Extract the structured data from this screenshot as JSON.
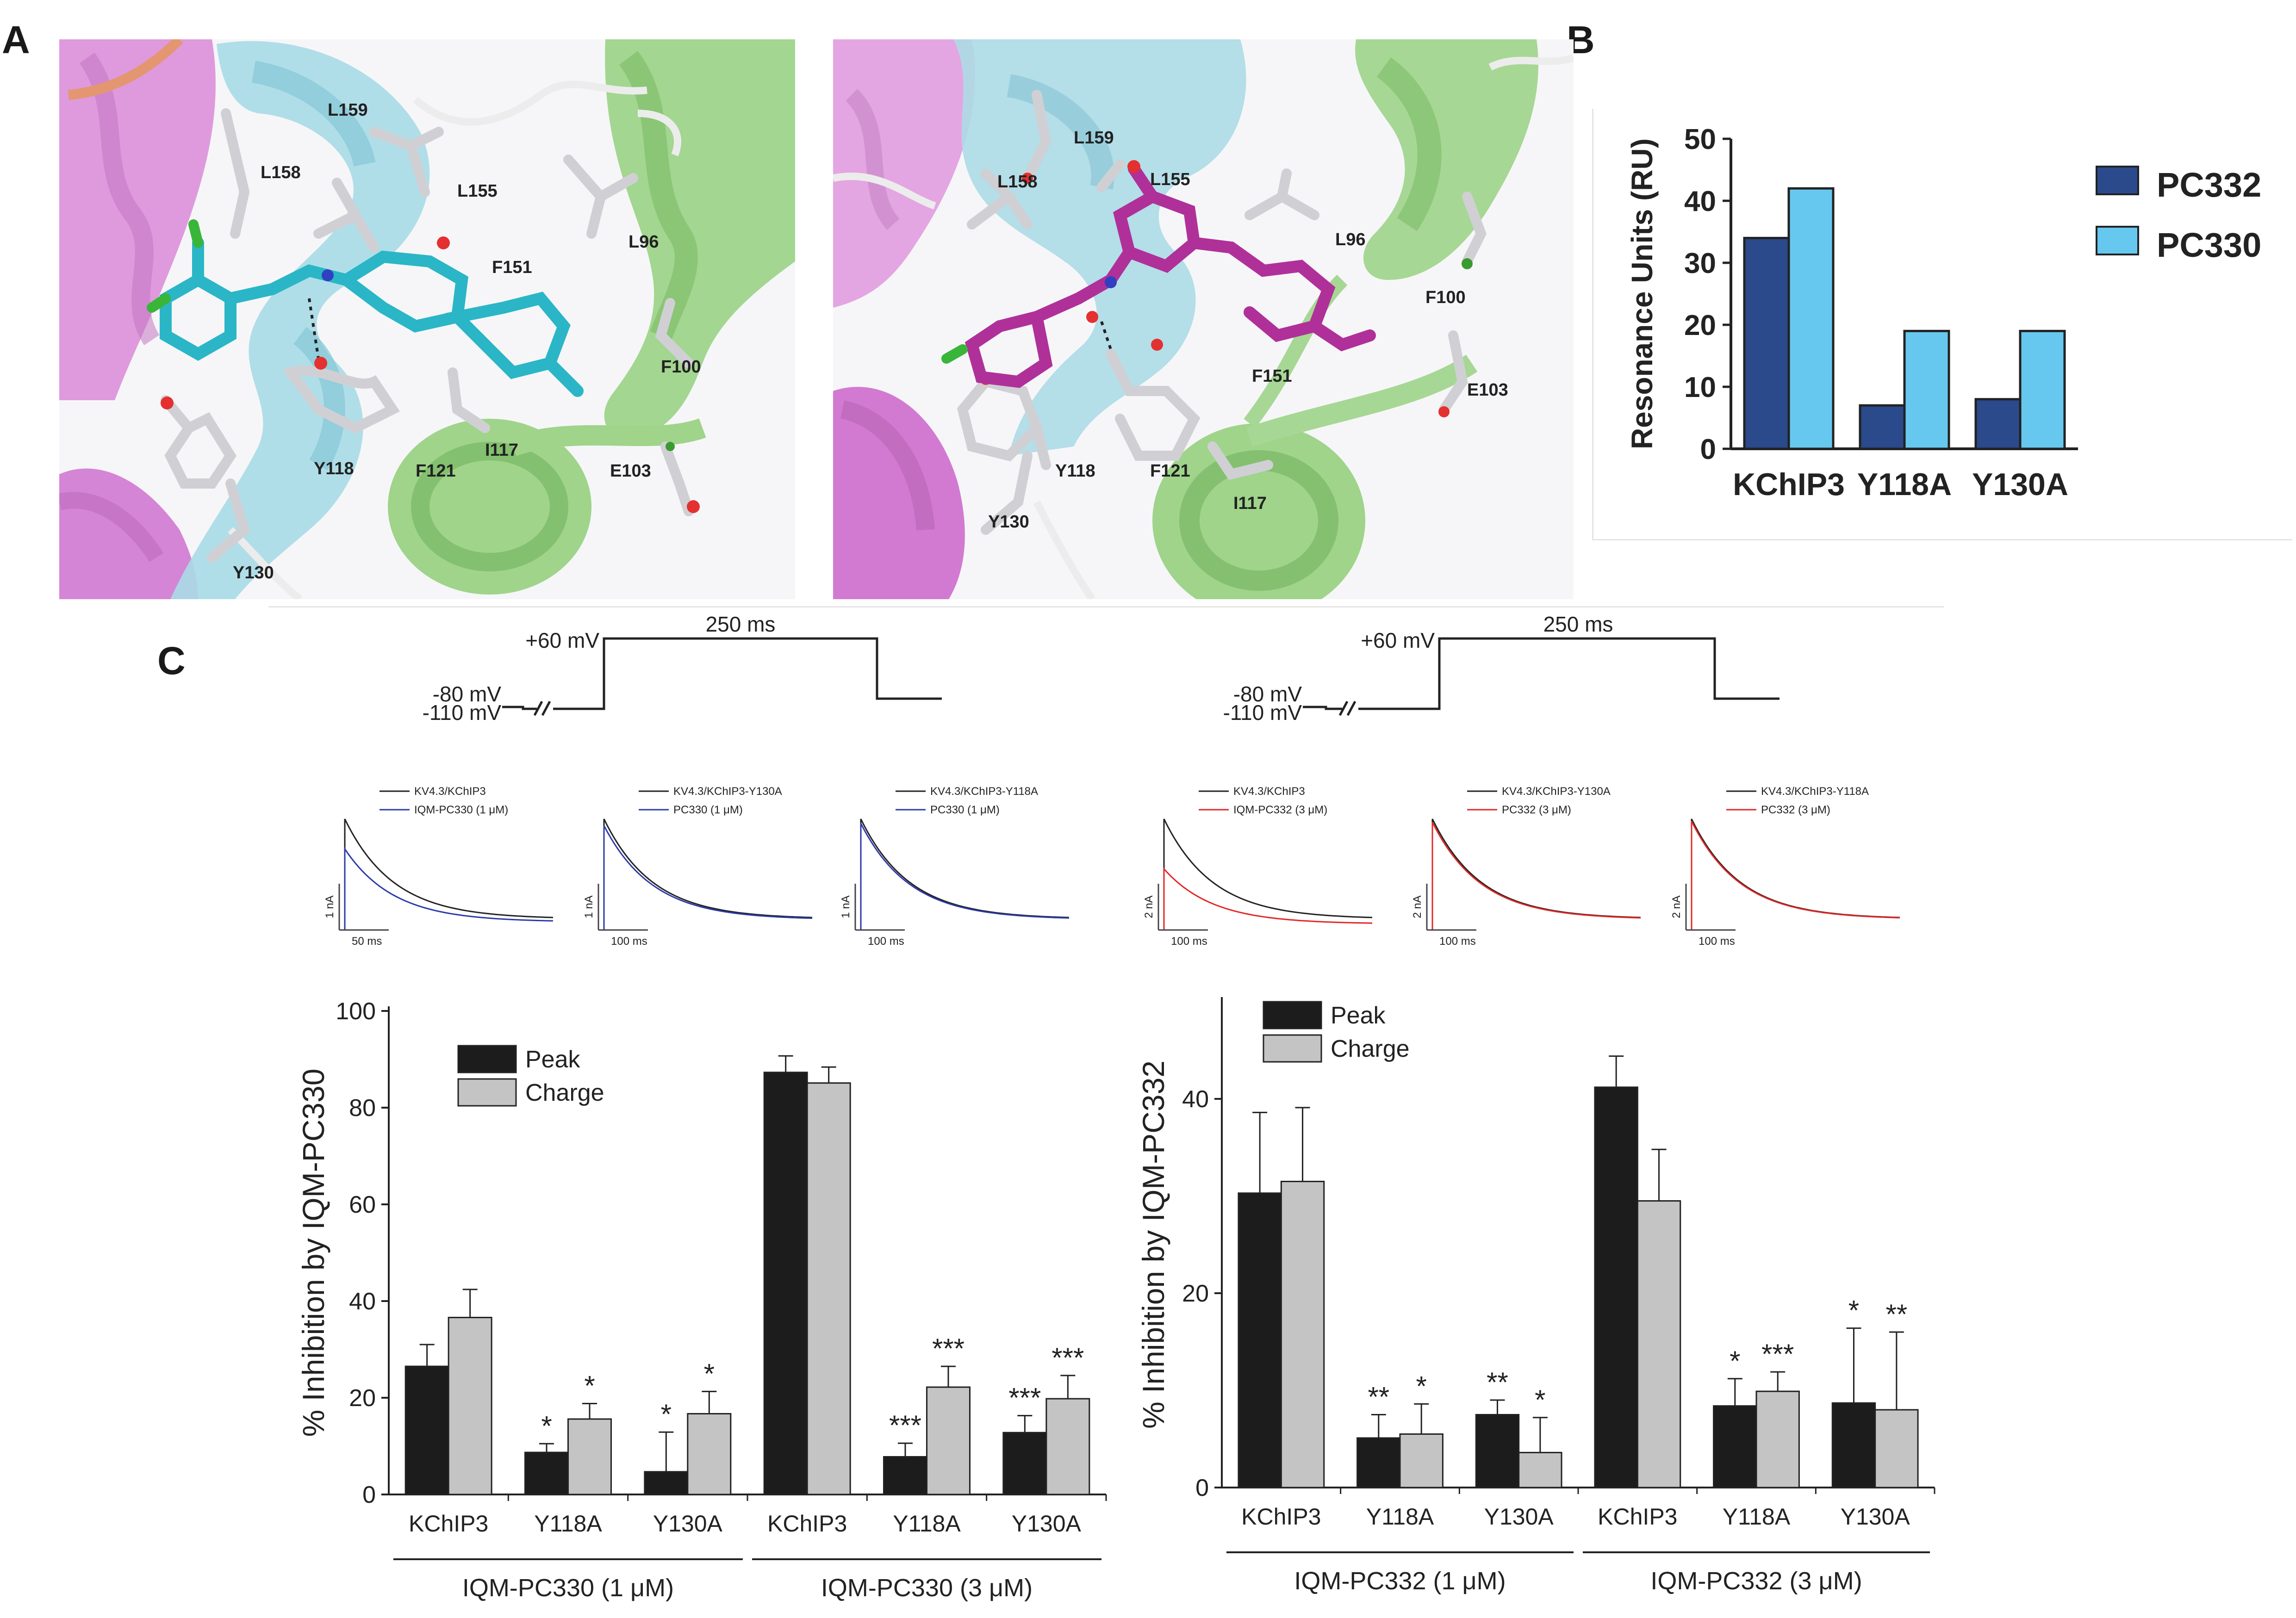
{
  "panel_labels": {
    "a": "A",
    "b": "B",
    "c": "C"
  },
  "panel_a": {
    "left_labels": [
      "L159",
      "L158",
      "L155",
      "L96",
      "F151",
      "F100",
      "Y118",
      "F121",
      "I117",
      "E103",
      "Y130"
    ],
    "right_labels": [
      "L159",
      "L158",
      "L155",
      "L96",
      "F100",
      "F151",
      "E103",
      "Y118",
      "F121",
      "I117",
      "Y130"
    ],
    "colors": {
      "magenta_helix": "#d98ed8",
      "cyan_helix": "#9fd6e0",
      "green_helix": "#9fd48c",
      "ligand_left": "#2ab6c6",
      "ligand_right": "#b0309a",
      "residue": "#d8d8d8"
    }
  },
  "protocol": {
    "v_hold": "-80 mV",
    "v_pre": "-110 mV",
    "v_step": "+60 mV",
    "duration": "250 ms"
  },
  "traces": {
    "left": [
      {
        "legend_black": "KV4.3/KChIP3",
        "legend_colored": "IQM-PC330 (1 μM)",
        "scale_y": "1 nA",
        "scale_x": "50 ms",
        "color": "#2b3aa8",
        "inhibition": 0.27
      },
      {
        "legend_black": "KV4.3/KChIP3-Y130A",
        "legend_colored": "PC330 (1 μM)",
        "scale_y": "1 nA",
        "scale_x": "100 ms",
        "color": "#2b3aa8",
        "inhibition": 0.06
      },
      {
        "legend_black": "KV4.3/KChIP3-Y118A",
        "legend_colored": "PC330 (1 μM)",
        "scale_y": "1 nA",
        "scale_x": "100 ms",
        "color": "#2b3aa8",
        "inhibition": 0.04
      }
    ],
    "right": [
      {
        "legend_black": "KV4.3/KChIP3",
        "legend_colored": "IQM-PC332 (3 μM)",
        "scale_y": "2 nA",
        "scale_x": "100 ms",
        "color": "#e32626",
        "inhibition": 0.45
      },
      {
        "legend_black": "KV4.3/KChIP3-Y130A",
        "legend_colored": "PC332 (3 μM)",
        "scale_y": "2 nA",
        "scale_x": "100 ms",
        "color": "#e32626",
        "inhibition": 0.03
      },
      {
        "legend_black": "KV4.3/KChIP3-Y118A",
        "legend_colored": "PC332 (3 μM)",
        "scale_y": "2 nA",
        "scale_x": "100 ms",
        "color": "#e32626",
        "inhibition": 0.02
      }
    ]
  },
  "chart_data": [
    {
      "type": "bar",
      "ylabel": "Resonance Units (RU)",
      "ylim": [
        0,
        50
      ],
      "yticks": [
        0,
        10,
        20,
        30,
        40,
        50
      ],
      "categories": [
        "KChIP3",
        "Y118A",
        "Y130A"
      ],
      "series": [
        {
          "name": "PC332",
          "color": "#2a4a8c",
          "values": [
            34,
            7,
            8
          ]
        },
        {
          "name": "PC330",
          "color": "#67c8ef",
          "values": [
            42,
            19,
            19
          ]
        }
      ],
      "legend": "top-right"
    },
    {
      "type": "bar",
      "ylabel": "% Inhibition by IQM-PC330",
      "ylim": [
        0,
        100
      ],
      "yticks": [
        0,
        20,
        40,
        60,
        80,
        100
      ],
      "categories": [
        "KChIP3",
        "Y118A",
        "Y130A",
        "KChIP3",
        "Y118A",
        "Y130A"
      ],
      "groups": [
        {
          "label": "IQM-PC330 (1 μM)",
          "span": [
            0,
            2
          ]
        },
        {
          "label": "IQM-PC330 (3 μM)",
          "span": [
            3,
            5
          ]
        }
      ],
      "series": [
        {
          "name": "Peak",
          "color": "#1c1c1c",
          "values": [
            26.5,
            8.7,
            4.7,
            87.3,
            7.8,
            12.8
          ],
          "errors": [
            4.5,
            1.8,
            8.2,
            3.4,
            2.8,
            3.5
          ],
          "stars": [
            "",
            "*",
            "*",
            "",
            "***",
            "***"
          ]
        },
        {
          "name": "Charge",
          "color": "#c4c4c4",
          "values": [
            36.6,
            15.6,
            16.7,
            85.1,
            22.2,
            19.8
          ],
          "errors": [
            5.8,
            3.2,
            4.6,
            3.3,
            4.3,
            4.8
          ],
          "stars": [
            "",
            "*",
            "*",
            "",
            "***",
            "***"
          ]
        }
      ],
      "legend": "top-left"
    },
    {
      "type": "bar",
      "ylabel": "% Inhibition by IQM-PC332",
      "ylim": [
        0,
        50
      ],
      "yticks": [
        0,
        20,
        40
      ],
      "categories": [
        "KChIP3",
        "Y118A",
        "Y130A",
        "KChIP3",
        "Y118A",
        "Y130A"
      ],
      "groups": [
        {
          "label": "IQM-PC332 (1 μM)",
          "span": [
            0,
            2
          ]
        },
        {
          "label": "IQM-PC332 (3 μM)",
          "span": [
            3,
            5
          ]
        }
      ],
      "series": [
        {
          "name": "Peak",
          "color": "#1c1c1c",
          "values": [
            30.3,
            5.1,
            7.5,
            41.2,
            8.4,
            8.7
          ],
          "errors": [
            8.3,
            2.4,
            1.5,
            3.2,
            2.8,
            7.7
          ],
          "stars": [
            "",
            "**",
            "**",
            "",
            "*",
            "*"
          ]
        },
        {
          "name": "Charge",
          "color": "#c4c4c4",
          "values": [
            31.5,
            5.5,
            3.6,
            29.5,
            9.9,
            8.0
          ],
          "errors": [
            7.6,
            3.1,
            3.6,
            5.3,
            2.0,
            8.0
          ],
          "stars": [
            "",
            "*",
            "*",
            "",
            "***",
            "**"
          ]
        }
      ],
      "legend": "top-left"
    }
  ]
}
